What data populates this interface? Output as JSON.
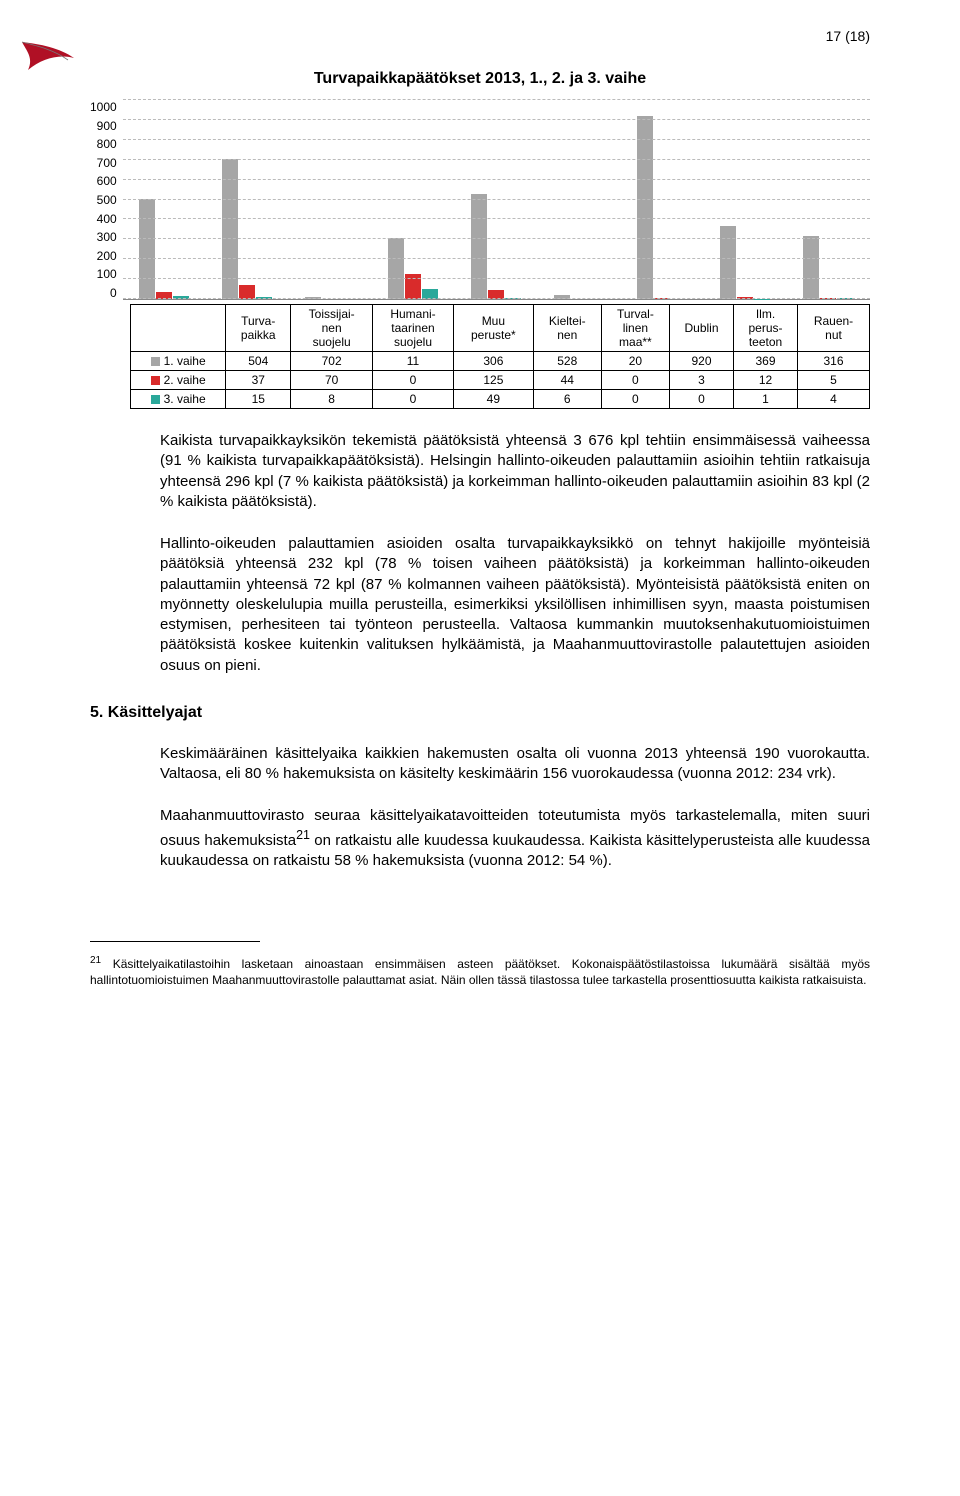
{
  "page_number": "17 (18)",
  "chart": {
    "title": "Turvapaikkapäätökset 2013, 1., 2. ja 3. vaihe",
    "type": "bar",
    "y": {
      "max": 1000,
      "step": 100
    },
    "categories": [
      "Turva-\npaikka",
      "Toissijai-\nnen\nsuojelu",
      "Humani-\ntaarinen\nsuojelu",
      "Muu\nperuste*",
      "Kieltei-\nnen",
      "Turval-\nlinen\nmaa**",
      "Dublin",
      "Ilm.\nperus-\nteeton",
      "Rauen-\nnut"
    ],
    "series": [
      {
        "key": "s1",
        "label": "1. vaihe",
        "color": "#a6a6a6",
        "values": [
          504,
          702,
          11,
          306,
          528,
          20,
          920,
          369,
          316
        ]
      },
      {
        "key": "s2",
        "label": "2. vaihe",
        "color": "#d92b2b",
        "values": [
          37,
          70,
          0,
          125,
          44,
          0,
          3,
          12,
          5
        ]
      },
      {
        "key": "s3",
        "label": "3. vaihe",
        "color": "#2aa89a",
        "values": [
          15,
          8,
          0,
          49,
          6,
          0,
          0,
          1,
          4
        ]
      }
    ],
    "grid_color": "#bbbbbb",
    "background": "#ffffff"
  },
  "paragraphs": {
    "p1": "Kaikista turvapaikkayksikön tekemistä päätöksistä yhteensä 3 676 kpl tehtiin ensimmäisessä vaiheessa (91 % kaikista turvapaikkapäätöksistä). Helsingin hallinto-oikeuden palauttamiin asioihin tehtiin ratkaisuja yhteensä 296 kpl (7 % kaikista päätöksistä) ja korkeimman hallinto-oikeuden palauttamiin asioihin 83 kpl (2 % kaikista päätöksistä).",
    "p2": "Hallinto-oikeuden palauttamien asioiden osalta turvapaikkayksikkö on tehnyt hakijoille myönteisiä päätöksiä yhteensä 232 kpl (78 % toisen vaiheen päätöksistä) ja korkeimman hallinto-oikeuden palauttamiin yhteensä 72 kpl (87 % kolmannen vaiheen päätöksistä). Myönteisistä päätöksistä eniten on myönnetty oleskelulupia muilla perusteilla, esimerkiksi yksilöllisen inhimillisen syyn, maasta poistumisen estymisen, perhesiteen tai työnteon perusteella. Valtaosa kummankin muutoksenhakutuomioistuimen päätöksistä koskee kuitenkin valituksen hylkäämistä, ja Maahanmuuttovirastolle palautettujen asioiden osuus on pieni.",
    "p3": "Keskimääräinen käsittelyaika kaikkien hakemusten osalta oli vuonna 2013 yhteensä 190 vuorokautta. Valtaosa, eli 80 % hakemuksista on käsitelty keskimäärin 156 vuorokaudessa (vuonna 2012: 234 vrk).",
    "p4a": "Maahanmuuttovirasto seuraa käsittelyaikatavoitteiden toteutumista myös tarkastelemalla, miten suuri osuus hakemuksista",
    "p4b": " on ratkaistu alle kuudessa kuukaudessa. Kaikista käsittelyperusteista alle kuudessa kuukaudessa on ratkaistu 58 % hakemuksista (vuonna 2012: 54 %)."
  },
  "section_heading": "5.  Käsittelyajat",
  "footnote": {
    "marker": "21",
    "text": " Käsittelyaikatilastoihin lasketaan ainoastaan ensimmäisen asteen päätökset. Kokonaispäätöstilastoissa lukumäärä sisältää myös hallintotuomioistuimen Maahanmuuttovirastolle palauttamat asiat. Näin ollen tässä tilastossa tulee tarkastella prosenttiosuutta kaikista ratkaisuista."
  }
}
